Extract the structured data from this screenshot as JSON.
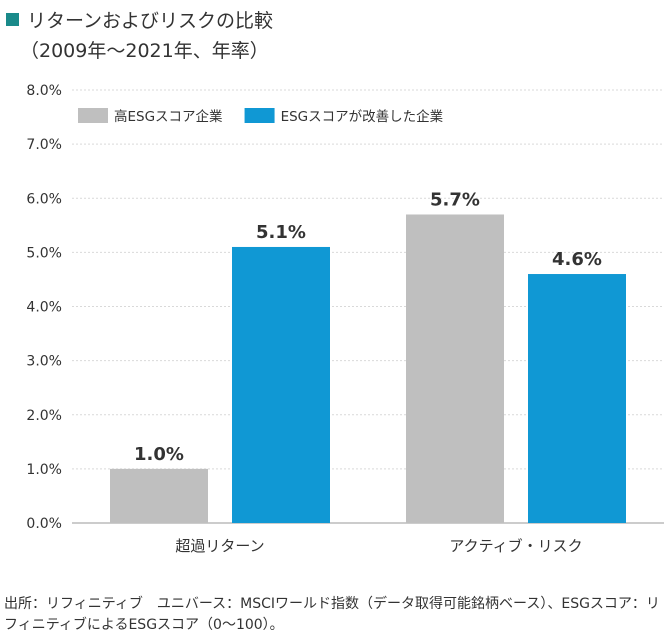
{
  "header": {
    "title": "リターンおよびリスクの比較",
    "subtitle": "（2009年～2021年、年率）"
  },
  "chart_data": {
    "type": "bar",
    "categories": [
      "超過リターン",
      "アクティブ・リスク"
    ],
    "series": [
      {
        "name": "高ESGスコア企業",
        "values": [
          1.0,
          5.7
        ],
        "color": "#bfbfbf"
      },
      {
        "name": "ESGスコアが改善した企業",
        "values": [
          5.1,
          4.6
        ],
        "color": "#1098d4"
      }
    ],
    "value_labels": [
      [
        "1.0%",
        "5.7%"
      ],
      [
        "5.1%",
        "4.6%"
      ]
    ],
    "yticks": [
      "0.0%",
      "1.0%",
      "2.0%",
      "3.0%",
      "4.0%",
      "5.0%",
      "6.0%",
      "7.0%",
      "8.0%"
    ],
    "ylim": [
      0,
      8
    ],
    "grid": true,
    "legend_position": "top-left"
  },
  "footer": {
    "source": "出所：リフィニティブ　ユニバース：MSCIワールド指数（データ取得可能銘柄ベース）、ESGスコア：リフィニティブによるESGスコア（0～100）。"
  }
}
